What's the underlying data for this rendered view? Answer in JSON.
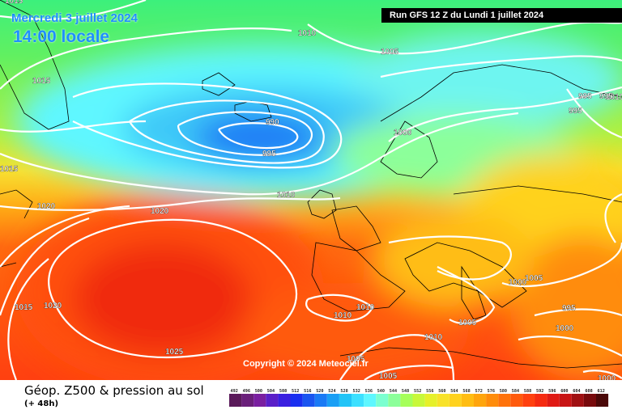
{
  "header": {
    "date_label": "Mercredi 3 juillet 2024",
    "local_time": "14:00 locale",
    "run_info": "Run GFS 12 Z du Lundi 1 juillet 2024"
  },
  "map": {
    "copyright": "Copyright © 2024 Meteociel.fr",
    "pressure_labels": [
      "1015",
      "1010",
      "1005",
      "995",
      "990",
      "995",
      "1015",
      "1010",
      "1000",
      "995",
      "995",
      "1015",
      "1020",
      "1020",
      "1010",
      "1000",
      "1005",
      "995",
      "1015",
      "1020",
      "1010",
      "1010",
      "1005",
      "1010",
      "1025",
      "1005",
      "1005",
      "1000",
      "1000"
    ]
  },
  "footer": {
    "title": "Géop. Z500 & pression au sol",
    "subtitle": "(+ 48h)"
  },
  "legend": {
    "values": [
      "492",
      "496",
      "500",
      "504",
      "508",
      "512",
      "516",
      "520",
      "524",
      "528",
      "532",
      "536",
      "540",
      "544",
      "548",
      "552",
      "556",
      "560",
      "564",
      "568",
      "572",
      "576",
      "580",
      "584",
      "588",
      "592",
      "596",
      "600",
      "604",
      "608",
      "612"
    ],
    "colors": [
      "#5a1a5a",
      "#6a1f7a",
      "#7a1fa0",
      "#5a1fc8",
      "#3a1fe0",
      "#1a2ff0",
      "#1a55f0",
      "#1a7af5",
      "#1a9ff5",
      "#22c4f7",
      "#3ce0ff",
      "#5ef7ff",
      "#7bffd0",
      "#8cff9a",
      "#a6ff5a",
      "#c8f83a",
      "#e6f02a",
      "#f8e22a",
      "#ffd21e",
      "#ffbd12",
      "#ffa50c",
      "#ff8c0a",
      "#ff720a",
      "#ff5a0c",
      "#ff400e",
      "#f52a10",
      "#e01a14",
      "#c81414",
      "#a01012",
      "#780a0c",
      "#4a0808"
    ]
  }
}
